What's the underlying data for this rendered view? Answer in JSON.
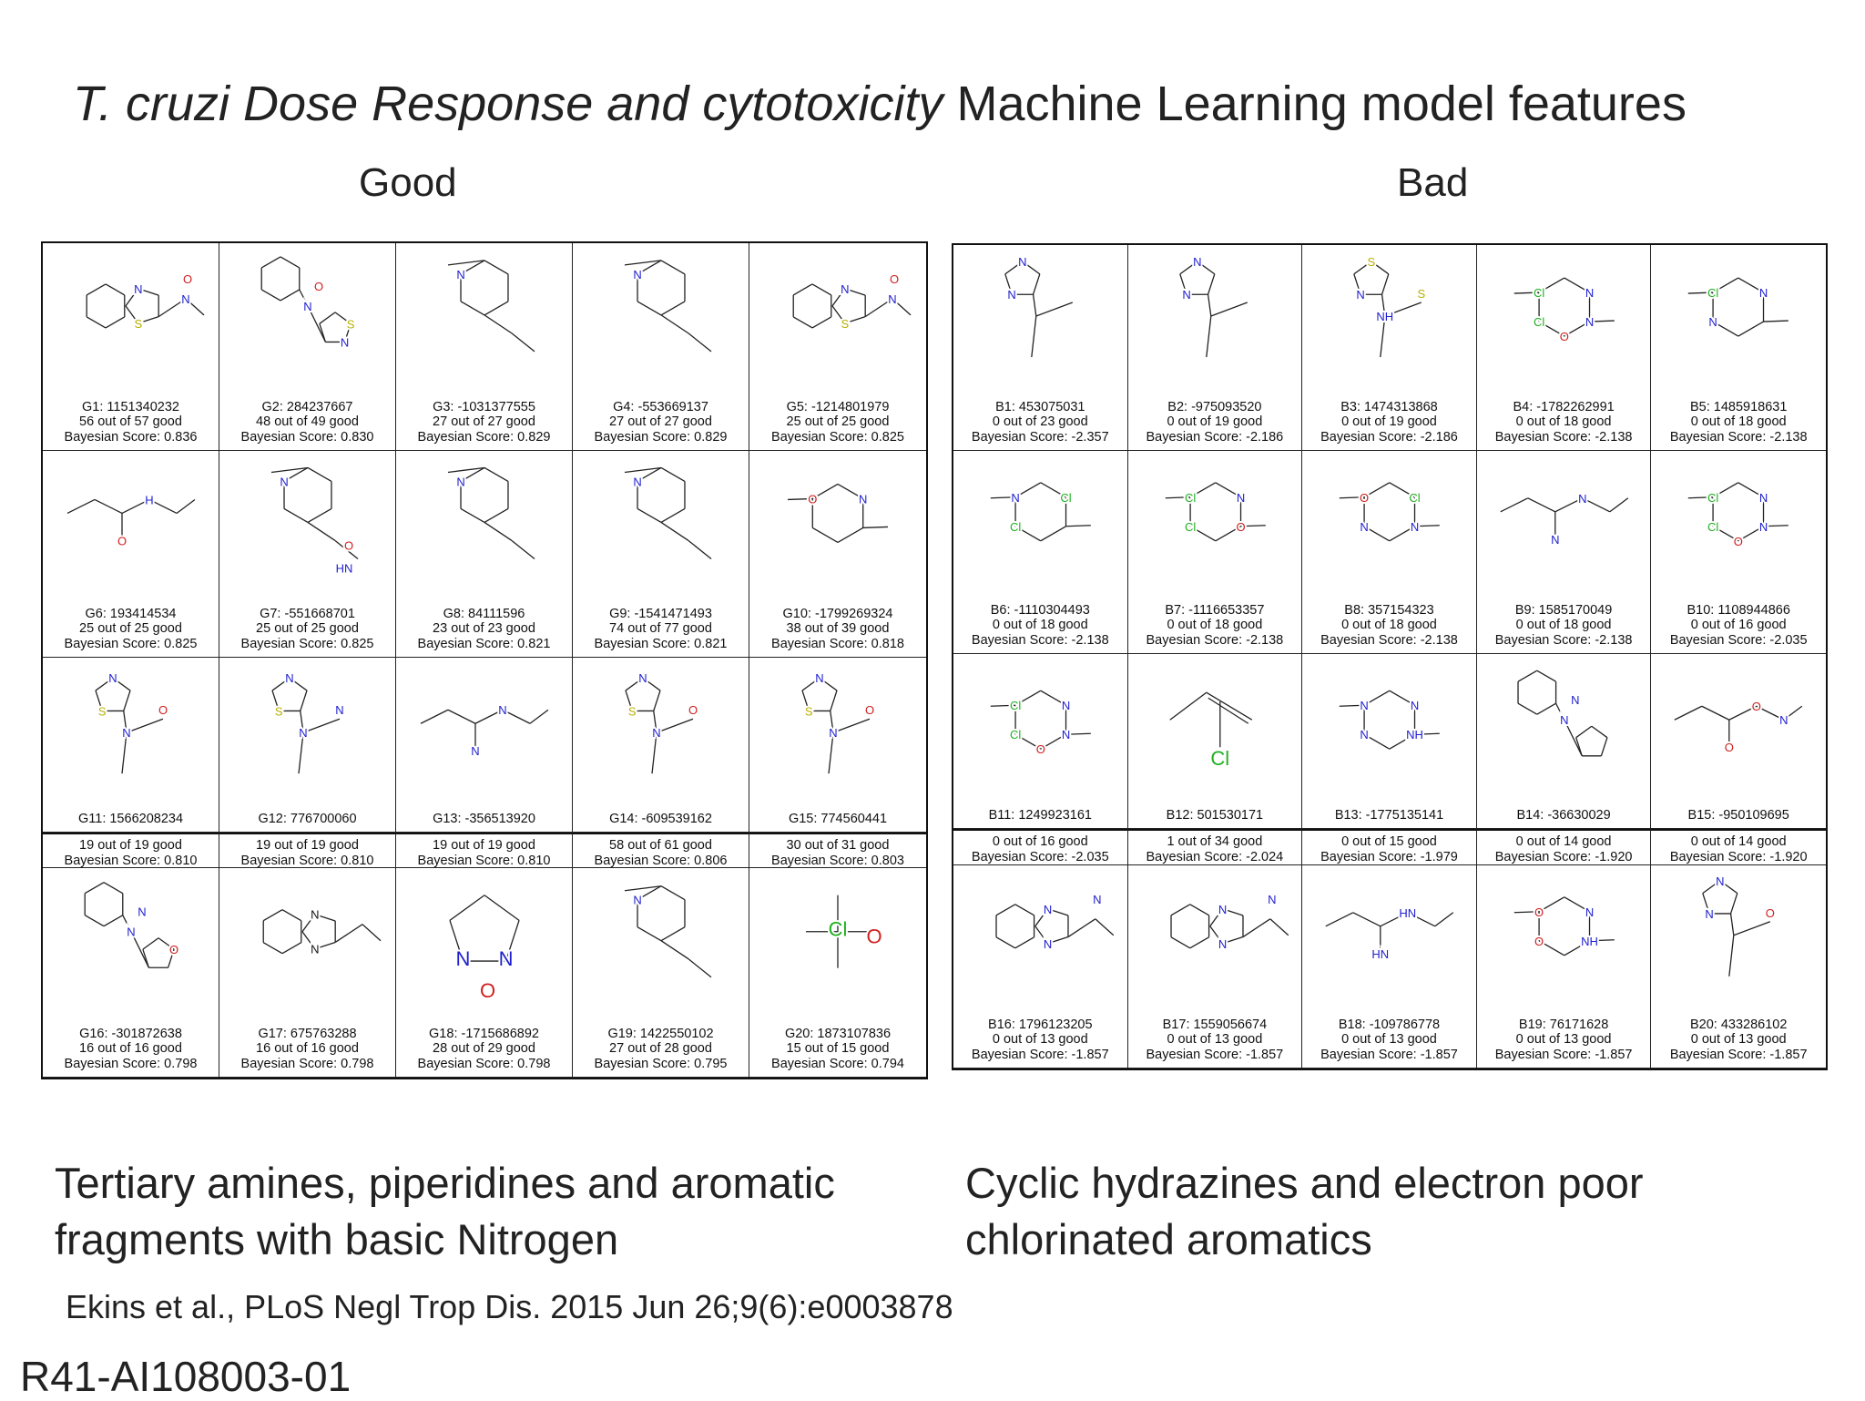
{
  "title": {
    "italic": "T. cruzi Dose Response and cytotoxicity",
    "rest": " Machine Learning model features"
  },
  "good": {
    "heading": "Good",
    "footer_line1": "Tertiary amines, piperidines and aromatic",
    "footer_line2": "fragments with basic Nitrogen",
    "cells": [
      {
        "id": "G1: 1151340232",
        "count": "56 out of 57 good",
        "score": "Bayesian Score: 0.836",
        "ring": "bicyclic",
        "atoms": [
          {
            "t": "N",
            "c": "#2020d0"
          },
          {
            "t": "S",
            "c": "#b8b000"
          },
          {
            "t": "O",
            "c": "#d02020"
          },
          {
            "t": "N",
            "c": "#2020d0"
          }
        ]
      },
      {
        "id": "G2: 284237667",
        "count": "48 out of 49 good",
        "score": "Bayesian Score: 0.830",
        "ring": "hexpent",
        "atoms": [
          {
            "t": "O",
            "c": "#d02020"
          },
          {
            "t": "N",
            "c": "#2020d0"
          },
          {
            "t": "S",
            "c": "#b8b000"
          },
          {
            "t": "N",
            "c": "#2020d0"
          }
        ]
      },
      {
        "id": "G3: -1031377555",
        "count": "27 out of 27 good",
        "score": "Bayesian Score: 0.829",
        "ring": "pip",
        "atoms": [
          {
            "t": "N",
            "c": "#2020d0"
          }
        ]
      },
      {
        "id": "G4: -553669137",
        "count": "27 out of 27 good",
        "score": "Bayesian Score: 0.829",
        "ring": "pip",
        "atoms": [
          {
            "t": "N",
            "c": "#2020d0"
          }
        ]
      },
      {
        "id": "G5: -1214801979",
        "count": "25 out of 25 good",
        "score": "Bayesian Score: 0.825",
        "ring": "bicyclic",
        "atoms": [
          {
            "t": "N",
            "c": "#2020d0"
          },
          {
            "t": "S",
            "c": "#b8b000"
          },
          {
            "t": "O",
            "c": "#d02020"
          },
          {
            "t": "N",
            "c": "#2020d0"
          }
        ]
      },
      {
        "id": "G6: 193414534",
        "count": "25 out of 25 good",
        "score": "Bayesian Score: 0.825",
        "ring": "chain",
        "atoms": [
          {
            "t": "H",
            "c": "#2020d0"
          },
          {
            "t": "O",
            "c": "#d02020"
          }
        ]
      },
      {
        "id": "G7: -551668701",
        "count": "25 out of 25 good",
        "score": "Bayesian Score: 0.825",
        "ring": "pip",
        "atoms": [
          {
            "t": "N",
            "c": "#2020d0"
          },
          {
            "t": "O",
            "c": "#d02020"
          },
          {
            "t": "HN",
            "c": "#2020d0"
          }
        ]
      },
      {
        "id": "G8: 84111596",
        "count": "23 out of 23 good",
        "score": "Bayesian Score: 0.821",
        "ring": "pip",
        "atoms": [
          {
            "t": "N",
            "c": "#2020d0"
          }
        ]
      },
      {
        "id": "G9: -1541471493",
        "count": "74 out of 77 good",
        "score": "Bayesian Score: 0.821",
        "ring": "pip",
        "atoms": [
          {
            "t": "N",
            "c": "#2020d0"
          }
        ]
      },
      {
        "id": "G10: -1799269324",
        "count": "38 out of 39 good",
        "score": "Bayesian Score: 0.818",
        "ring": "hex",
        "atoms": [
          {
            "t": "O",
            "c": "#d02020"
          },
          {
            "t": "N",
            "c": "#2020d0"
          }
        ]
      },
      {
        "id": "G11: 1566208234",
        "count": "19 out of 19 good",
        "score": "Bayesian Score: 0.810",
        "ring": "pent",
        "atoms": [
          {
            "t": "N",
            "c": "#2020d0"
          },
          {
            "t": "S",
            "c": "#b8b000"
          },
          {
            "t": "O",
            "c": "#d02020"
          },
          {
            "t": "N",
            "c": "#2020d0"
          }
        ]
      },
      {
        "id": "G12: 776700060",
        "count": "19 out of 19 good",
        "score": "Bayesian Score: 0.810",
        "ring": "pent",
        "atoms": [
          {
            "t": "N",
            "c": "#2020d0"
          },
          {
            "t": "S",
            "c": "#b8b000"
          },
          {
            "t": "N",
            "c": "#2020d0"
          },
          {
            "t": "N",
            "c": "#2020d0"
          }
        ]
      },
      {
        "id": "G13: -356513920",
        "count": "19 out of 19 good",
        "score": "Bayesian Score: 0.810",
        "ring": "chain",
        "atoms": [
          {
            "t": "N",
            "c": "#2020d0"
          },
          {
            "t": "N",
            "c": "#2020d0"
          }
        ]
      },
      {
        "id": "G14: -609539162",
        "count": "58 out of 61 good",
        "score": "Bayesian Score: 0.806",
        "ring": "pent",
        "atoms": [
          {
            "t": "N",
            "c": "#2020d0"
          },
          {
            "t": "S",
            "c": "#b8b000"
          },
          {
            "t": "O",
            "c": "#d02020"
          },
          {
            "t": "N",
            "c": "#2020d0"
          }
        ]
      },
      {
        "id": "G15: 774560441",
        "count": "30 out of 31 good",
        "score": "Bayesian Score: 0.803",
        "ring": "pent",
        "atoms": [
          {
            "t": "N",
            "c": "#2020d0"
          },
          {
            "t": "S",
            "c": "#b8b000"
          },
          {
            "t": "O",
            "c": "#d02020"
          },
          {
            "t": "N",
            "c": "#2020d0"
          }
        ]
      },
      {
        "id": "G16: -301872638",
        "count": "16 out of 16 good",
        "score": "Bayesian Score: 0.798",
        "ring": "hexpent",
        "atoms": [
          {
            "t": "N",
            "c": "#2020d0"
          },
          {
            "t": "N",
            "c": "#2020d0"
          },
          {
            "t": "O",
            "c": "#d02020"
          }
        ]
      },
      {
        "id": "G17: 675763288",
        "count": "16 out of 16 good",
        "score": "Bayesian Score: 0.798",
        "ring": "bicyclic",
        "atoms": [
          {
            "t": "N",
            "c": "#111"
          },
          {
            "t": "N",
            "c": "#111"
          }
        ]
      },
      {
        "id": "G18: -1715686892",
        "count": "28 out of 29 good",
        "score": "Bayesian Score: 0.798",
        "ring": "bigpent",
        "atoms": [
          {
            "t": "N",
            "c": "#2020d0"
          },
          {
            "t": "N",
            "c": "#2020d0"
          },
          {
            "t": "O",
            "c": "#d02020"
          }
        ]
      },
      {
        "id": "G19: 1422550102",
        "count": "27 out of 28 good",
        "score": "Bayesian Score: 0.795",
        "ring": "pip",
        "atoms": [
          {
            "t": "N",
            "c": "#2020d0"
          }
        ]
      },
      {
        "id": "G20: 1873107836",
        "count": "15 out of 15 good",
        "score": "Bayesian Score: 0.794",
        "ring": "cl",
        "atoms": [
          {
            "t": "Cl",
            "c": "#20b020"
          },
          {
            "t": "O",
            "c": "#d02020"
          }
        ]
      }
    ]
  },
  "bad": {
    "heading": "Bad",
    "footer_line1": "Cyclic hydrazines and electron poor",
    "footer_line2": "chlorinated aromatics",
    "cells": [
      {
        "id": "B1: 453075031",
        "count": "0 out of 23 good",
        "score": "Bayesian Score: -2.357",
        "ring": "pent",
        "atoms": [
          {
            "t": "N",
            "c": "#2020d0"
          },
          {
            "t": "N",
            "c": "#2020d0"
          }
        ]
      },
      {
        "id": "B2: -975093520",
        "count": "0 out of 19 good",
        "score": "Bayesian Score: -2.186",
        "ring": "pent",
        "atoms": [
          {
            "t": "N",
            "c": "#2020d0"
          },
          {
            "t": "N",
            "c": "#2020d0"
          }
        ]
      },
      {
        "id": "B3: 1474313868",
        "count": "0 out of 19 good",
        "score": "Bayesian Score: -2.186",
        "ring": "pent",
        "atoms": [
          {
            "t": "S",
            "c": "#b8b000"
          },
          {
            "t": "N",
            "c": "#2020d0"
          },
          {
            "t": "S",
            "c": "#b8b000"
          },
          {
            "t": "NH",
            "c": "#2020d0"
          }
        ]
      },
      {
        "id": "B4: -1782262991",
        "count": "0 out of 18 good",
        "score": "Bayesian Score: -2.138",
        "ring": "hex",
        "atoms": [
          {
            "t": "Cl",
            "c": "#20b020"
          },
          {
            "t": "N",
            "c": "#2020d0"
          },
          {
            "t": "Cl",
            "c": "#20b020"
          },
          {
            "t": "N",
            "c": "#2020d0"
          },
          {
            "t": "O",
            "c": "#d02020"
          }
        ]
      },
      {
        "id": "B5: 1485918631",
        "count": "0 out of 18 good",
        "score": "Bayesian Score: -2.138",
        "ring": "hex",
        "atoms": [
          {
            "t": "Cl",
            "c": "#20b020"
          },
          {
            "t": "N",
            "c": "#2020d0"
          },
          {
            "t": "N",
            "c": "#2020d0"
          }
        ]
      },
      {
        "id": "B6: -1110304493",
        "count": "0 out of 18 good",
        "score": "Bayesian Score: -2.138",
        "ring": "hex",
        "atoms": [
          {
            "t": "N",
            "c": "#2020d0"
          },
          {
            "t": "Cl",
            "c": "#20b020"
          },
          {
            "t": "Cl",
            "c": "#20b020"
          }
        ]
      },
      {
        "id": "B7: -1116653357",
        "count": "0 out of 18 good",
        "score": "Bayesian Score: -2.138",
        "ring": "hex",
        "atoms": [
          {
            "t": "Cl",
            "c": "#20b020"
          },
          {
            "t": "N",
            "c": "#2020d0"
          },
          {
            "t": "Cl",
            "c": "#20b020"
          },
          {
            "t": "O",
            "c": "#d02020"
          }
        ]
      },
      {
        "id": "B8: 357154323",
        "count": "0 out of 18 good",
        "score": "Bayesian Score: -2.138",
        "ring": "hex",
        "atoms": [
          {
            "t": "O",
            "c": "#d02020"
          },
          {
            "t": "Cl",
            "c": "#20b020"
          },
          {
            "t": "N",
            "c": "#2020d0"
          },
          {
            "t": "N",
            "c": "#2020d0"
          }
        ]
      },
      {
        "id": "B9: 1585170049",
        "count": "0 out of 18 good",
        "score": "Bayesian Score: -2.138",
        "ring": "chain",
        "atoms": [
          {
            "t": "N",
            "c": "#2020d0"
          },
          {
            "t": "N",
            "c": "#2020d0"
          }
        ]
      },
      {
        "id": "B10: 1108944866",
        "count": "0 out of 16 good",
        "score": "Bayesian Score: -2.035",
        "ring": "hex",
        "atoms": [
          {
            "t": "Cl",
            "c": "#20b020"
          },
          {
            "t": "N",
            "c": "#2020d0"
          },
          {
            "t": "Cl",
            "c": "#20b020"
          },
          {
            "t": "N",
            "c": "#2020d0"
          },
          {
            "t": "O",
            "c": "#d02020"
          }
        ]
      },
      {
        "id": "B11: 1249923161",
        "count": "0 out of 16 good",
        "score": "Bayesian Score: -2.035",
        "ring": "hex",
        "atoms": [
          {
            "t": "Cl",
            "c": "#20b020"
          },
          {
            "t": "N",
            "c": "#2020d0"
          },
          {
            "t": "Cl",
            "c": "#20b020"
          },
          {
            "t": "N",
            "c": "#2020d0"
          },
          {
            "t": "O",
            "c": "#d02020"
          }
        ]
      },
      {
        "id": "B12: 501530171",
        "count": "1 out of 34 good",
        "score": "Bayesian Score: -2.024",
        "ring": "alkene",
        "atoms": [
          {
            "t": "Cl",
            "c": "#20b020"
          }
        ]
      },
      {
        "id": "B13: -1775135141",
        "count": "0 out of 15 good",
        "score": "Bayesian Score: -1.979",
        "ring": "hex",
        "atoms": [
          {
            "t": "N",
            "c": "#2020d0"
          },
          {
            "t": "N",
            "c": "#2020d0"
          },
          {
            "t": "N",
            "c": "#2020d0"
          },
          {
            "t": "NH",
            "c": "#2020d0"
          }
        ]
      },
      {
        "id": "B14: -36630029",
        "count": "0 out of 14 good",
        "score": "Bayesian Score: -1.920",
        "ring": "hexpent",
        "atoms": [
          {
            "t": "N",
            "c": "#2020d0"
          },
          {
            "t": "N",
            "c": "#2020d0"
          }
        ]
      },
      {
        "id": "B15: -950109695",
        "count": "0 out of 14 good",
        "score": "Bayesian Score: -1.920",
        "ring": "chain",
        "atoms": [
          {
            "t": "O",
            "c": "#d02020"
          },
          {
            "t": "O",
            "c": "#d02020"
          },
          {
            "t": "N",
            "c": "#2020d0"
          }
        ]
      },
      {
        "id": "B16: 1796123205",
        "count": "0 out of 13 good",
        "score": "Bayesian Score: -1.857",
        "ring": "bicyclic",
        "atoms": [
          {
            "t": "N",
            "c": "#2020d0"
          },
          {
            "t": "N",
            "c": "#2020d0"
          },
          {
            "t": "N",
            "c": "#2020d0"
          }
        ]
      },
      {
        "id": "B17: 1559056674",
        "count": "0 out of 13 good",
        "score": "Bayesian Score: -1.857",
        "ring": "bicyclic",
        "atoms": [
          {
            "t": "N",
            "c": "#2020d0"
          },
          {
            "t": "N",
            "c": "#2020d0"
          },
          {
            "t": "N",
            "c": "#2020d0"
          }
        ]
      },
      {
        "id": "B18: -109786778",
        "count": "0 out of 13 good",
        "score": "Bayesian Score: -1.857",
        "ring": "chain",
        "atoms": [
          {
            "t": "HN",
            "c": "#2020d0"
          },
          {
            "t": "HN",
            "c": "#2020d0"
          }
        ]
      },
      {
        "id": "B19: 76171628",
        "count": "0 out of 13 good",
        "score": "Bayesian Score: -1.857",
        "ring": "hex",
        "atoms": [
          {
            "t": "O",
            "c": "#d02020"
          },
          {
            "t": "N",
            "c": "#2020d0"
          },
          {
            "t": "O",
            "c": "#d02020"
          },
          {
            "t": "NH",
            "c": "#2020d0"
          }
        ]
      },
      {
        "id": "B20: 433286102",
        "count": "0 out of 13 good",
        "score": "Bayesian Score: -1.857",
        "ring": "pent",
        "atoms": [
          {
            "t": "N",
            "c": "#2020d0"
          },
          {
            "t": "N",
            "c": "#2020d0"
          },
          {
            "t": "O",
            "c": "#d02020"
          }
        ]
      }
    ]
  },
  "citation": "Ekins et al., PLoS Negl Trop Dis. 2015 Jun 26;9(6):e0003878",
  "grant": "R41-AI108003-01"
}
